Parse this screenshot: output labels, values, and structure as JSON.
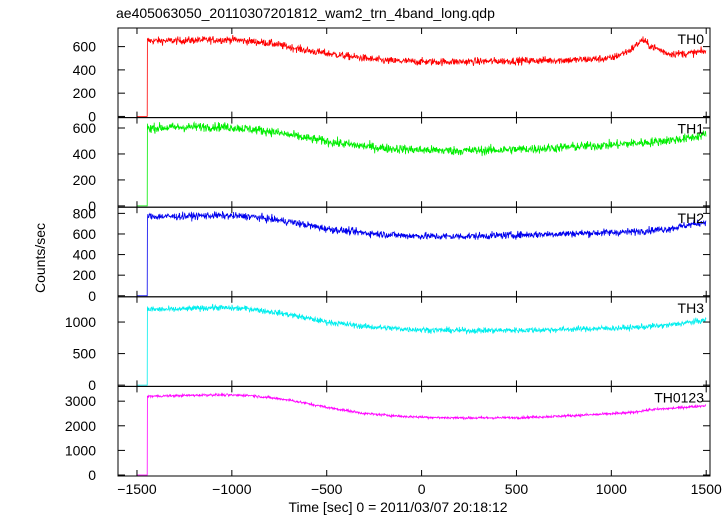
{
  "chart_data": {
    "type": "line",
    "title": "ae405063050_20110307201812_wam2_trn_4band_long.qdp",
    "xlabel": "Time [sec] 0 = 2011/03/07 20:18:12",
    "ylabel": "Counts/sec",
    "xlim": [
      -1600,
      1520
    ],
    "xticks": [
      -1500,
      -1000,
      -500,
      0,
      500,
      1000,
      1500
    ],
    "xtick_labels": [
      "−1500",
      "−1000",
      "−500",
      "0",
      "500",
      "1000",
      "1500"
    ],
    "grid": false,
    "panels": [
      {
        "name": "TH0",
        "color": "#ff0000",
        "ylim": [
          -10,
          760
        ],
        "yticks": [
          0,
          200,
          400,
          600
        ],
        "noise": 32,
        "points": [
          [
            -1500,
            0
          ],
          [
            -1450,
            0
          ],
          [
            -1445,
            650
          ],
          [
            -1300,
            650
          ],
          [
            -1200,
            655
          ],
          [
            -1000,
            660
          ],
          [
            -800,
            630
          ],
          [
            -600,
            565
          ],
          [
            -400,
            520
          ],
          [
            -300,
            500
          ],
          [
            -200,
            480
          ],
          [
            0,
            470
          ],
          [
            200,
            470
          ],
          [
            400,
            475
          ],
          [
            600,
            480
          ],
          [
            800,
            485
          ],
          [
            1000,
            500
          ],
          [
            1100,
            570
          ],
          [
            1165,
            660
          ],
          [
            1200,
            610
          ],
          [
            1300,
            540
          ],
          [
            1400,
            540
          ],
          [
            1500,
            560
          ]
        ]
      },
      {
        "name": "TH1",
        "color": "#00ee00",
        "ylim": [
          -10,
          680
        ],
        "yticks": [
          0,
          200,
          400,
          600
        ],
        "noise": 35,
        "points": [
          [
            -1500,
            0
          ],
          [
            -1450,
            0
          ],
          [
            -1445,
            600
          ],
          [
            -1300,
            605
          ],
          [
            -1100,
            610
          ],
          [
            -1000,
            605
          ],
          [
            -800,
            575
          ],
          [
            -600,
            520
          ],
          [
            -400,
            475
          ],
          [
            -200,
            445
          ],
          [
            0,
            430
          ],
          [
            200,
            425
          ],
          [
            400,
            430
          ],
          [
            600,
            440
          ],
          [
            800,
            455
          ],
          [
            1000,
            470
          ],
          [
            1200,
            490
          ],
          [
            1400,
            520
          ],
          [
            1500,
            550
          ]
        ]
      },
      {
        "name": "TH2",
        "color": "#0000ee",
        "ylim": [
          -10,
          860
        ],
        "yticks": [
          0,
          200,
          400,
          600,
          800
        ],
        "noise": 35,
        "points": [
          [
            -1500,
            0
          ],
          [
            -1450,
            0
          ],
          [
            -1445,
            770
          ],
          [
            -1300,
            770
          ],
          [
            -1100,
            780
          ],
          [
            -900,
            770
          ],
          [
            -700,
            720
          ],
          [
            -500,
            650
          ],
          [
            -300,
            610
          ],
          [
            -100,
            585
          ],
          [
            100,
            575
          ],
          [
            300,
            580
          ],
          [
            500,
            590
          ],
          [
            700,
            600
          ],
          [
            900,
            610
          ],
          [
            1100,
            620
          ],
          [
            1300,
            650
          ],
          [
            1500,
            720
          ]
        ]
      },
      {
        "name": "TH3",
        "color": "#00eeee",
        "ylim": [
          -20,
          1400
        ],
        "yticks": [
          0,
          500,
          1000
        ],
        "noise": 45,
        "points": [
          [
            -1500,
            0
          ],
          [
            -1450,
            0
          ],
          [
            -1445,
            1200
          ],
          [
            -1300,
            1200
          ],
          [
            -1100,
            1230
          ],
          [
            -900,
            1210
          ],
          [
            -700,
            1120
          ],
          [
            -500,
            1000
          ],
          [
            -300,
            930
          ],
          [
            -100,
            890
          ],
          [
            100,
            870
          ],
          [
            300,
            865
          ],
          [
            500,
            870
          ],
          [
            700,
            880
          ],
          [
            900,
            895
          ],
          [
            1100,
            910
          ],
          [
            1300,
            950
          ],
          [
            1500,
            1030
          ]
        ]
      },
      {
        "name": "TH0123",
        "color": "#ff00ff",
        "ylim": [
          -40,
          3600
        ],
        "yticks": [
          0,
          1000,
          2000,
          3000
        ],
        "noise": 50,
        "points": [
          [
            -1500,
            0
          ],
          [
            -1450,
            0
          ],
          [
            -1445,
            3200
          ],
          [
            -1300,
            3220
          ],
          [
            -1100,
            3260
          ],
          [
            -900,
            3230
          ],
          [
            -700,
            3050
          ],
          [
            -500,
            2750
          ],
          [
            -300,
            2500
          ],
          [
            -100,
            2380
          ],
          [
            100,
            2330
          ],
          [
            300,
            2320
          ],
          [
            500,
            2330
          ],
          [
            700,
            2380
          ],
          [
            900,
            2450
          ],
          [
            1100,
            2530
          ],
          [
            1200,
            2650
          ],
          [
            1300,
            2700
          ],
          [
            1500,
            2820
          ]
        ]
      }
    ]
  }
}
